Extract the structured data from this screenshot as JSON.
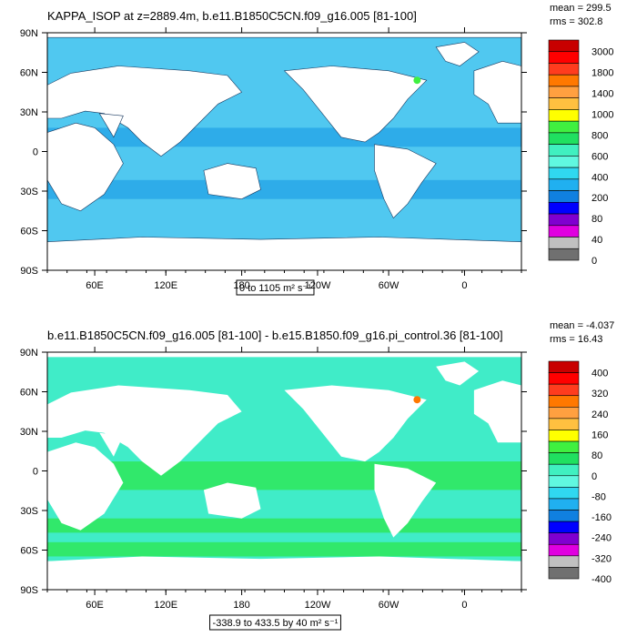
{
  "chart_data": [
    {
      "type": "heatmap",
      "title": "KAPPA_ISOP at z=2889.4m, b.e11.B1850C5CN.f09_g16.005 [81-100]",
      "stats": {
        "mean": "mean = 299.5",
        "rms": "rms = 302.8"
      },
      "range_label": "0 to 1105",
      "units_label": "m² s⁻¹",
      "x_ticks": [
        "60E",
        "120E",
        "180",
        "120W",
        "60W",
        "0"
      ],
      "y_ticks": [
        "90N",
        "60N",
        "30N",
        "0",
        "30S",
        "60S",
        "90S"
      ],
      "colorbar": {
        "labels": [
          "3000",
          "1800",
          "1400",
          "1000",
          "800",
          "600",
          "400",
          "200",
          "80",
          "40",
          "0"
        ],
        "colors": [
          "#c80000",
          "#ff0000",
          "#ff3c1e",
          "#ff7800",
          "#ffa040",
          "#ffc040",
          "#ffff00",
          "#40f040",
          "#20e060",
          "#40f0c0",
          "#60f8e0",
          "#30d8f0",
          "#20b0f0",
          "#1080e0",
          "#0000ff",
          "#8000d0",
          "#e000e0",
          "#c0c0c0",
          "#707070"
        ]
      },
      "dominant_color": "#50c8f0",
      "secondary_color": "#2aa8e8"
    },
    {
      "type": "heatmap",
      "title": "b.e11.B1850C5CN.f09_g16.005 [81-100] - b.e15.B1850.f09_g16.pi_control.36 [81-100]",
      "stats": {
        "mean": "mean = -4.037",
        "rms": "rms = 16.43"
      },
      "range_label": "-338.9 to 433.5 by 40",
      "units_label": "m² s⁻¹",
      "x_ticks": [
        "60E",
        "120E",
        "180",
        "120W",
        "60W",
        "0"
      ],
      "y_ticks": [
        "90N",
        "60N",
        "30N",
        "0",
        "30S",
        "60S",
        "90S"
      ],
      "colorbar": {
        "labels": [
          "400",
          "320",
          "240",
          "160",
          "80",
          "0",
          "-80",
          "-160",
          "-240",
          "-320",
          "-400"
        ],
        "colors": [
          "#c80000",
          "#ff0000",
          "#ff3c1e",
          "#ff7800",
          "#ffa040",
          "#ffc040",
          "#ffff00",
          "#40f040",
          "#20e060",
          "#40f0c0",
          "#60f8e0",
          "#30d8f0",
          "#20b0f0",
          "#1080e0",
          "#0000ff",
          "#8000d0",
          "#e000e0",
          "#c0c0c0",
          "#707070"
        ]
      },
      "dominant_color": "#40ecc8",
      "secondary_color": "#30e860"
    }
  ]
}
